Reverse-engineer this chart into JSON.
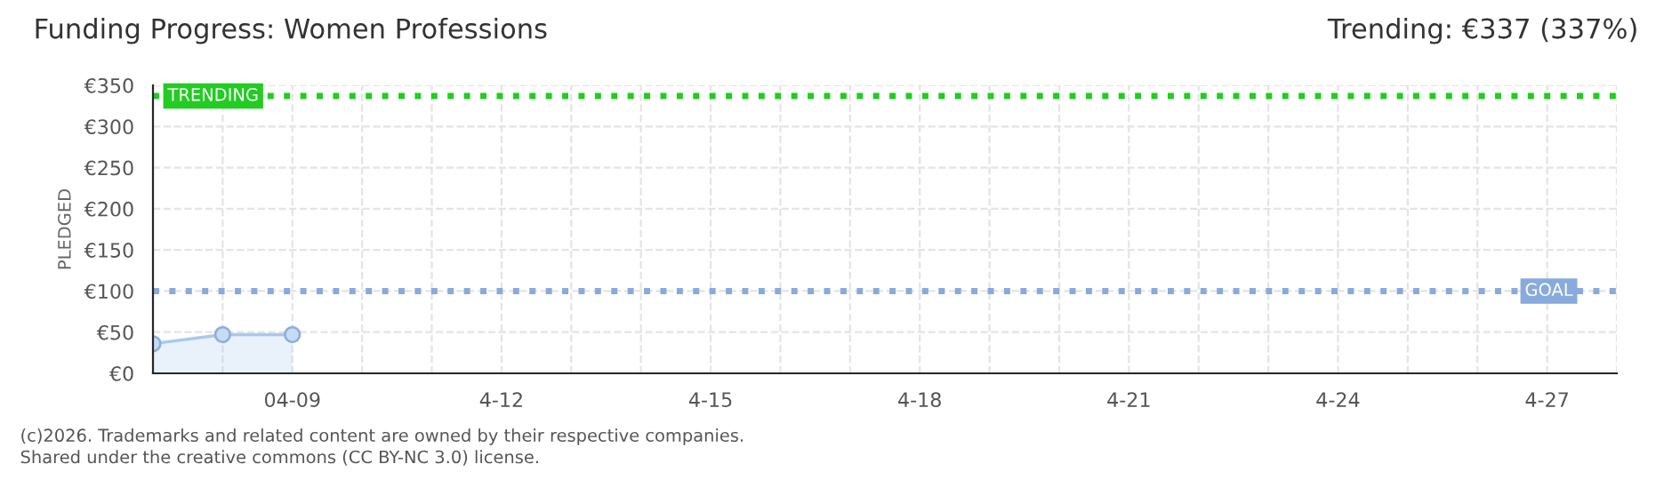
{
  "chart_data": {
    "type": "area",
    "title": "Funding Progress: Women Professions",
    "subtitle": "Trending: €337 (337%)",
    "ylabel": "PLEDGED",
    "x": [
      "2026-04-07",
      "2026-04-08",
      "2026-04-09"
    ],
    "series": [
      {
        "color": "#a9c8ec",
        "values": [
          36,
          47,
          47
        ]
      }
    ],
    "marker": "circle",
    "grid": true,
    "xlim": [
      "2026-04-07",
      "2026-04-28"
    ],
    "xticks": [
      {
        "value": "2026-04-07",
        "label": null
      },
      {
        "value": "2026-04-08",
        "label": null
      },
      {
        "value": "2026-04-09",
        "label": "04-09"
      },
      {
        "value": "2026-04-10",
        "label": null
      },
      {
        "value": "2026-04-11",
        "label": null
      },
      {
        "value": "2026-04-12",
        "label": "4-12"
      },
      {
        "value": "2026-04-13",
        "label": null
      },
      {
        "value": "2026-04-14",
        "label": null
      },
      {
        "value": "2026-04-15",
        "label": "4-15"
      },
      {
        "value": "2026-04-16",
        "label": null
      },
      {
        "value": "2026-04-17",
        "label": null
      },
      {
        "value": "2026-04-18",
        "label": "4-18"
      },
      {
        "value": "2026-04-19",
        "label": null
      },
      {
        "value": "2026-04-20",
        "label": null
      },
      {
        "value": "2026-04-21",
        "label": "4-21"
      },
      {
        "value": "2026-04-22",
        "label": null
      },
      {
        "value": "2026-04-23",
        "label": null
      },
      {
        "value": "2026-04-24",
        "label": "4-24"
      },
      {
        "value": "2026-04-25",
        "label": null
      },
      {
        "value": "2026-04-26",
        "label": null
      },
      {
        "value": "2026-04-27",
        "label": "4-27"
      },
      {
        "value": "2026-04-28",
        "label": null
      }
    ],
    "ylim": [
      0,
      350
    ],
    "yticks": [
      {
        "value": 0,
        "label": "€0"
      },
      {
        "value": 50,
        "label": "€50"
      },
      {
        "value": 100,
        "label": "€100"
      },
      {
        "value": 150,
        "label": "€150"
      },
      {
        "value": 200,
        "label": "€200"
      },
      {
        "value": 250,
        "label": "€250"
      },
      {
        "value": 300,
        "label": "€300"
      },
      {
        "value": 350,
        "label": "€350"
      }
    ],
    "ref_lines": [
      {
        "axis": "y",
        "value": 337,
        "label": "TRENDING",
        "color": "#22cc22",
        "line_style": "dotted"
      },
      {
        "axis": "y",
        "value": 100,
        "label": "GOAL",
        "color": "#88aadd",
        "line_style": "dotted"
      }
    ],
    "annotations": [
      "(c)2026. Trademarks and related content are owned by their respective companies.",
      "Shared under the creative commons (CC BY-NC 3.0) license."
    ]
  }
}
